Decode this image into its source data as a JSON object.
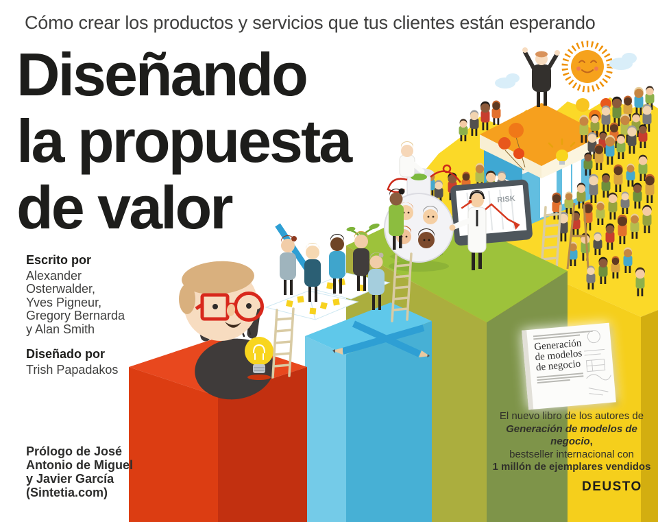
{
  "tagline": "Cómo crear los productos y servicios que tus clientes están esperando",
  "title": {
    "lines": [
      "Diseñando",
      "la propuesta",
      "de valor"
    ]
  },
  "credits": {
    "written_by_label": "Escrito por",
    "authors_lines": [
      "Alexander",
      "Osterwalder,",
      "Yves Pigneur,",
      "Gregory Bernarda",
      "y Alan Smith"
    ],
    "designed_by_label": "Diseñado por",
    "designer": "Trish Papadakos"
  },
  "prologue_lines": [
    "Prólogo de José",
    "Antonio de Miguel",
    "y Javier García",
    "(Sintetia.com)"
  ],
  "promo": {
    "line1": "El nuevo libro de los autores de",
    "line2": "Generación de modelos de negocio",
    "line2_suffix": ",",
    "line3": "bestseller internacional con",
    "line4": "1 millón de ejemplares vendidos"
  },
  "book_thumbnail": {
    "title_lines": [
      "Generación",
      "de modelos",
      "de negocio"
    ]
  },
  "publisher": "DEUSTO",
  "illustration": {
    "risk_label": "RISK",
    "palette": {
      "red_top": "#E8481E",
      "red_front": "#DC3D12",
      "red_side": "#C23010",
      "blue_top": "#5FC8EA",
      "blue_left": "#74CBE8",
      "blue_front": "#47B0D5",
      "green_top": "#9DC23B",
      "green_front": "#ABAE3E",
      "green_side": "#7E9449",
      "yellow_top": "#FBD928",
      "yellow_front": "#F5CF1C",
      "yellow_side": "#D3AE10",
      "sun_orange": "#F6A21C",
      "cloud_blue": "#D9EEF9",
      "ladder_tan": "#D9CBA4",
      "pencil_blue": "#2E9FD4",
      "lightbulb_yellow": "#F8D51E",
      "glasses_red": "#D8281C",
      "title_black": "#1D1D1B",
      "text_gray": "#3E3E3D"
    },
    "crowd_body_colors": [
      "#8CB04B",
      "#E2702D",
      "#7A7A7A",
      "#45A8CC",
      "#C73E2E",
      "#97A23F",
      "#D9A441",
      "#54514E",
      "#B5BD4E",
      "#6E8F3C"
    ],
    "crowd_skin_tones": [
      "#F4CBA4",
      "#8C5A3B",
      "#C68642",
      "#F2D4B0",
      "#5F3A22"
    ],
    "crowd_hair_colors": [
      "#3A2B1E",
      "#C2622A",
      "#9C9C9C",
      "#E8CE9C",
      "#1F1B18"
    ]
  }
}
